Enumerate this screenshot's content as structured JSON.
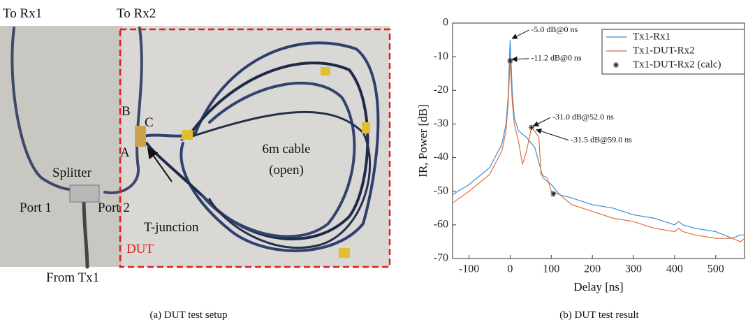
{
  "photo": {
    "labels": {
      "to_rx1": "To Rx1",
      "to_rx2": "To Rx2",
      "b": "B",
      "c": "C",
      "a": "A",
      "splitter": "Splitter",
      "port1": "Port 1",
      "port2": "Port 2",
      "t_junction": "T-junction",
      "dut": "DUT",
      "from_tx1": "From Tx1",
      "cable": "6m cable",
      "open": "(open)"
    },
    "caption": "(a)  DUT test setup"
  },
  "chart_caption": "(b)  DUT test result",
  "chart_data": {
    "type": "line",
    "xlabel": "Delay [ns]",
    "ylabel": "IR, Power [dB]",
    "xlim": [
      -140,
      570
    ],
    "xticks": [
      -100,
      0,
      100,
      200,
      300,
      400,
      500
    ],
    "ylim": [
      -70,
      0
    ],
    "yticks": [
      0,
      -10,
      -20,
      -30,
      -40,
      -50,
      -60,
      -70
    ],
    "legend": "upper right",
    "series": [
      {
        "name": "Tx1-Rx1",
        "color": "#3a8fd6",
        "type": "line",
        "x": [
          -140,
          -100,
          -50,
          -20,
          -10,
          -5,
          0,
          5,
          10,
          20,
          40,
          60,
          80,
          100,
          120,
          150,
          200,
          250,
          300,
          350,
          400,
          410,
          420,
          450,
          500,
          540,
          560,
          570
        ],
        "values": [
          -51,
          -48,
          -43,
          -36,
          -30,
          -22,
          -5,
          -20,
          -28,
          -32,
          -34,
          -37,
          -46,
          -48,
          -51,
          -52,
          -54,
          -55,
          -57,
          -58,
          -60,
          -59,
          -60,
          -61,
          -62,
          -64,
          -63,
          -63
        ]
      },
      {
        "name": "Tx1-DUT-Rx2",
        "color": "#e0703a",
        "type": "line",
        "x": [
          -140,
          -100,
          -50,
          -20,
          -10,
          -5,
          0,
          5,
          10,
          20,
          30,
          40,
          52,
          59,
          70,
          75,
          90,
          100,
          120,
          150,
          200,
          250,
          300,
          350,
          400,
          410,
          420,
          450,
          500,
          540,
          560,
          570
        ],
        "values": [
          -53.5,
          -50,
          -45,
          -38,
          -32,
          -24,
          -11,
          -23,
          -30,
          -35,
          -42,
          -38,
          -31,
          -32,
          -34,
          -45,
          -46,
          -50,
          -51,
          -54,
          -56,
          -58,
          -59,
          -61,
          -62,
          -61,
          -62,
          -63,
          -64,
          -64,
          -65,
          -64
        ]
      },
      {
        "name": "Tx1-DUT-Rx2 (calc)",
        "color": "#222222",
        "type": "scatter",
        "x": [
          0,
          52,
          105
        ],
        "values": [
          -11.2,
          -31,
          -50.8
        ]
      }
    ],
    "annotations": [
      {
        "text": "-5.0 dB@0 ns",
        "x": 0,
        "y": -5.0
      },
      {
        "text": "-11.2 dB@0 ns",
        "x": 0,
        "y": -11.2
      },
      {
        "text": "-31.0 dB@52.0 ns",
        "x": 52.0,
        "y": -31.0
      },
      {
        "text": "-31.5 dB@59.0 ns",
        "x": 59.0,
        "y": -31.5
      }
    ]
  }
}
